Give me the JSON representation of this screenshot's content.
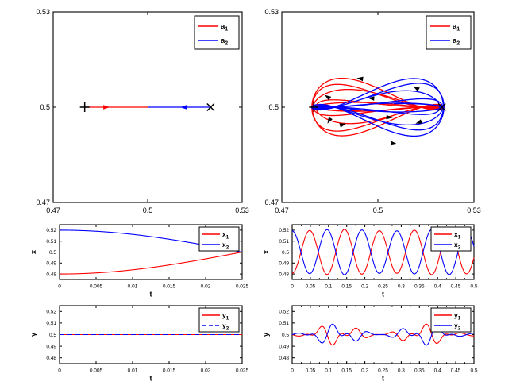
{
  "figure": {
    "background": "#ffffff"
  },
  "palette": {
    "red": "#ff0000",
    "blue": "#0000ff",
    "axis": "#000000",
    "text": "#000000",
    "legend_border": "#000000",
    "legend_bg": "#ffffff",
    "arrow": "#000000",
    "marker": "#000000"
  },
  "models": {
    "short": {
      "mean": 0.5,
      "xAmp": 0.02,
      "xPeriod": 0.1,
      "xModDepth": 0,
      "xModPeriod": 1,
      "yAmp1": 0,
      "yAmp2": 0,
      "yEnvBase": 0,
      "yEnvDepth": 0,
      "yEnvPeriod": 1,
      "yEnvPhase": 0,
      "tmin": 0,
      "tmax": 0.025
    },
    "long": {
      "mean": 0.5,
      "xAmp": 0.02,
      "xPeriod": 0.096,
      "xModDepth": -0.035,
      "xModPeriod": 0.27,
      "yAmp1": 0.006,
      "yAmp2": 0.0045,
      "yEnvBase": 0.55,
      "yEnvDepth": 0.45,
      "yEnvPeriod": 0.242,
      "yEnvPhase": -1.5708,
      "tmin": 0,
      "tmax": 0.5
    }
  },
  "chart_data": [
    {
      "id": "phase-short",
      "type": "line",
      "title": "",
      "xlabel": "",
      "ylabel": "",
      "xlim": [
        0.47,
        0.53
      ],
      "ylim": [
        0.47,
        0.53
      ],
      "xtick_vals": [
        0.47,
        0.5,
        0.53
      ],
      "xticks": [
        "0.47",
        "0.5",
        "0.53"
      ],
      "ytick_vals": [
        0.47,
        0.5,
        0.53
      ],
      "yticks": [
        "0.47",
        "0.5",
        "0.53"
      ],
      "legend": [
        {
          "base": "a",
          "sub": "1",
          "color": "#ff0000",
          "dash": "solid"
        },
        {
          "base": "a",
          "sub": "2",
          "color": "#0000ff",
          "dash": "solid"
        }
      ],
      "series": [
        {
          "name": "a1",
          "color": "#ff0000",
          "dash": "solid",
          "fn": "phase",
          "body": 1,
          "model": "short"
        },
        {
          "name": "a2",
          "color": "#0000ff",
          "dash": "solid",
          "fn": "phase",
          "body": 2,
          "model": "short"
        }
      ],
      "markers": [
        {
          "shape": "plus",
          "x": 0.48,
          "y": 0.5
        },
        {
          "shape": "cross",
          "x": 0.52,
          "y": 0.5
        }
      ],
      "arrows": [
        {
          "x": 0.4868,
          "y": 0.5,
          "angle": 0,
          "color": "#ff0000"
        },
        {
          "x": 0.5115,
          "y": 0.5,
          "angle": 180,
          "color": "#0000ff"
        }
      ]
    },
    {
      "id": "phase-long",
      "type": "line",
      "title": "",
      "xlabel": "",
      "ylabel": "",
      "xlim": [
        0.47,
        0.53
      ],
      "ylim": [
        0.47,
        0.53
      ],
      "xtick_vals": [
        0.47,
        0.5,
        0.53
      ],
      "xticks": [
        "0.47",
        "0.5",
        "0.53"
      ],
      "ytick_vals": [
        0.47,
        0.5,
        0.53
      ],
      "yticks": [
        "0.47",
        "0.5",
        "0.53"
      ],
      "legend": [
        {
          "base": "a",
          "sub": "1",
          "color": "#ff0000",
          "dash": "solid"
        },
        {
          "base": "a",
          "sub": "2",
          "color": "#0000ff",
          "dash": "solid"
        }
      ],
      "series": [
        {
          "name": "a1",
          "color": "#ff0000",
          "dash": "solid",
          "fn": "phase",
          "body": 1,
          "model": "long"
        },
        {
          "name": "a2",
          "color": "#0000ff",
          "dash": "solid",
          "fn": "phase",
          "body": 2,
          "model": "long"
        }
      ],
      "markers": [
        {
          "shape": "plus",
          "x": 0.48,
          "y": 0.5
        },
        {
          "shape": "cross",
          "x": 0.52,
          "y": 0.5
        }
      ],
      "arrows": [
        {
          "x": 0.4945,
          "y": 0.509,
          "angle": 187
        },
        {
          "x": 0.512,
          "y": 0.506,
          "angle": 210
        },
        {
          "x": 0.4843,
          "y": 0.5032,
          "angle": 215
        },
        {
          "x": 0.498,
          "y": 0.5028,
          "angle": 185
        },
        {
          "x": 0.5035,
          "y": 0.4968,
          "angle": 5
        },
        {
          "x": 0.505,
          "y": 0.4885,
          "angle": 8
        },
        {
          "x": 0.489,
          "y": 0.4945,
          "angle": 345
        },
        {
          "x": 0.5128,
          "y": 0.4952,
          "angle": 160
        },
        {
          "x": 0.4848,
          "y": 0.4958,
          "angle": 120
        }
      ]
    },
    {
      "id": "x-t-short",
      "type": "line",
      "title": "",
      "xlabel": "t",
      "ylabel": "x",
      "xlim": [
        0,
        0.025
      ],
      "ylim": [
        0.475,
        0.525
      ],
      "xtick_vals": [
        0,
        0.005,
        0.01,
        0.015,
        0.02,
        0.025
      ],
      "xticks": [
        "0",
        "0.005",
        "0.01",
        "0.015",
        "0.02",
        "0.025"
      ],
      "ytick_vals": [
        0.48,
        0.49,
        0.5,
        0.51,
        0.52
      ],
      "yticks": [
        "0.48",
        "0.49",
        "0.5",
        "0.51",
        "0.52"
      ],
      "legend": [
        {
          "base": "x",
          "sub": "1",
          "color": "#ff0000",
          "dash": "solid"
        },
        {
          "base": "x",
          "sub": "2",
          "color": "#0000ff",
          "dash": "solid"
        }
      ],
      "series": [
        {
          "name": "x1",
          "color": "#ff0000",
          "dash": "solid",
          "fn": "x_t",
          "body": 1,
          "model": "short"
        },
        {
          "name": "x2",
          "color": "#0000ff",
          "dash": "solid",
          "fn": "x_t",
          "body": 2,
          "model": "short"
        }
      ]
    },
    {
      "id": "x-t-long",
      "type": "line",
      "title": "",
      "xlabel": "t",
      "ylabel": "x",
      "xlim": [
        0,
        0.5
      ],
      "ylim": [
        0.475,
        0.525
      ],
      "xminor": 0.025,
      "xtick_vals": [
        0,
        0.05,
        0.1,
        0.15,
        0.2,
        0.25,
        0.3,
        0.35,
        0.4,
        0.45,
        0.5
      ],
      "xticks": [
        "0",
        "0.05",
        "0.1",
        "0.15",
        "0.2",
        "0.25",
        "0.3",
        "0.35",
        "0.4",
        "0.45",
        "0.5"
      ],
      "ytick_vals": [
        0.48,
        0.49,
        0.5,
        0.51,
        0.52
      ],
      "yticks": [
        "0.48",
        "0.49",
        "0.5",
        "0.51",
        "0.52"
      ],
      "legend": [
        {
          "base": "x",
          "sub": "1",
          "color": "#ff0000",
          "dash": "solid"
        },
        {
          "base": "x",
          "sub": "2",
          "color": "#0000ff",
          "dash": "solid"
        }
      ],
      "series": [
        {
          "name": "x1",
          "color": "#ff0000",
          "dash": "solid",
          "fn": "x_t",
          "body": 1,
          "model": "long"
        },
        {
          "name": "x2",
          "color": "#0000ff",
          "dash": "solid",
          "fn": "x_t",
          "body": 2,
          "model": "long"
        }
      ]
    },
    {
      "id": "y-t-short",
      "type": "line",
      "title": "",
      "xlabel": "t",
      "ylabel": "y",
      "xlim": [
        0,
        0.025
      ],
      "ylim": [
        0.475,
        0.525
      ],
      "xtick_vals": [
        0,
        0.005,
        0.01,
        0.015,
        0.02,
        0.025
      ],
      "xticks": [
        "0",
        "0.005",
        "0.01",
        "0.015",
        "0.02",
        "0.025"
      ],
      "ytick_vals": [
        0.48,
        0.49,
        0.5,
        0.51,
        0.52
      ],
      "yticks": [
        "0.48",
        "0.49",
        "0.5",
        "0.51",
        "0.52"
      ],
      "legend": [
        {
          "base": "y",
          "sub": "1",
          "color": "#ff0000",
          "dash": "solid"
        },
        {
          "base": "y",
          "sub": "2",
          "color": "#0000ff",
          "dash": "dashed"
        }
      ],
      "series": [
        {
          "name": "y1",
          "color": "#ff0000",
          "dash": "solid",
          "fn": "y_t",
          "body": 1,
          "model": "short"
        },
        {
          "name": "y2",
          "color": "#0000ff",
          "dash": "dashed",
          "fn": "y_t",
          "body": 2,
          "model": "short"
        }
      ]
    },
    {
      "id": "y-t-long",
      "type": "line",
      "title": "",
      "xlabel": "t",
      "ylabel": "y",
      "xlim": [
        0,
        0.5
      ],
      "ylim": [
        0.475,
        0.525
      ],
      "xminor": 0.025,
      "xtick_vals": [
        0,
        0.05,
        0.1,
        0.15,
        0.2,
        0.25,
        0.3,
        0.35,
        0.4,
        0.45,
        0.5
      ],
      "xticks": [
        "0",
        "0.05",
        "0.1",
        "0.15",
        "0.2",
        "0.25",
        "0.3",
        "0.35",
        "0.4",
        "0.45",
        "0.5"
      ],
      "ytick_vals": [
        0.48,
        0.49,
        0.5,
        0.51,
        0.52
      ],
      "yticks": [
        "0.48",
        "0.49",
        "0.5",
        "0.51",
        "0.52"
      ],
      "legend": [
        {
          "base": "y",
          "sub": "1",
          "color": "#ff0000",
          "dash": "solid"
        },
        {
          "base": "y",
          "sub": "2",
          "color": "#0000ff",
          "dash": "solid"
        }
      ],
      "series": [
        {
          "name": "y1",
          "color": "#ff0000",
          "dash": "solid",
          "fn": "y_t",
          "body": 1,
          "model": "long"
        },
        {
          "name": "y2",
          "color": "#0000ff",
          "dash": "solid",
          "fn": "y_t",
          "body": 2,
          "model": "long"
        }
      ]
    }
  ]
}
